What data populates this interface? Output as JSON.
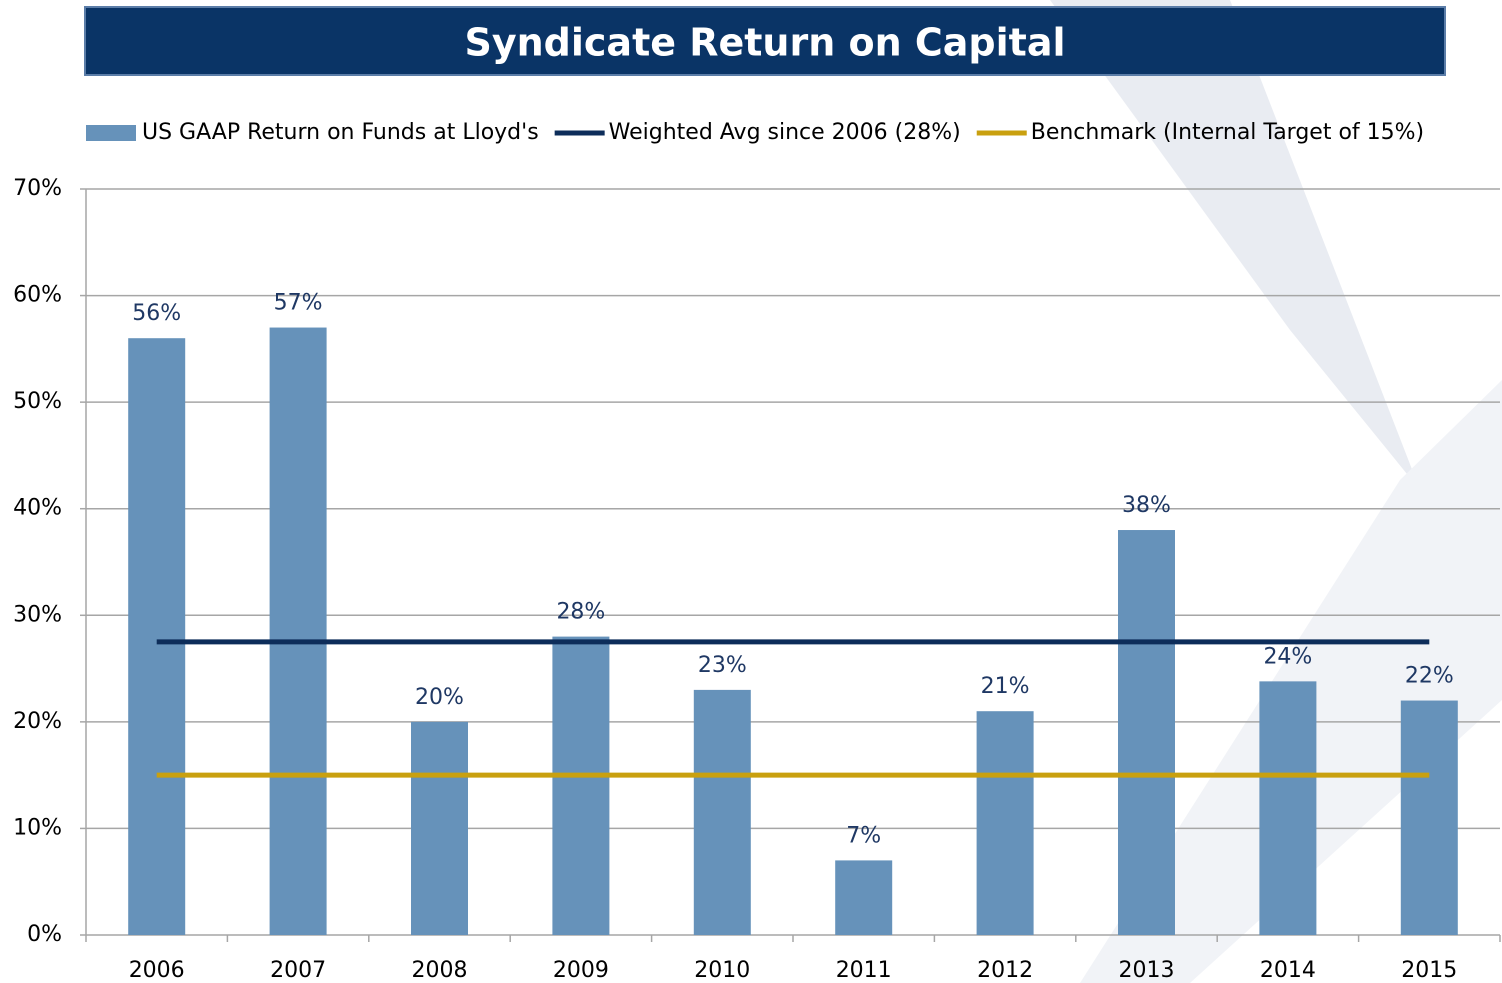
{
  "chart_data": {
    "type": "bar",
    "title": "Syndicate Return on Capital",
    "categories": [
      "2006",
      "2007",
      "2008",
      "2009",
      "2010",
      "2011",
      "2012",
      "2013",
      "2014",
      "2015"
    ],
    "series": [
      {
        "name": "US GAAP Return on Funds at Lloyd's",
        "type": "bar",
        "color": "#6692ba",
        "values": [
          56,
          57,
          20,
          28,
          23,
          7,
          21,
          38,
          23.8,
          22
        ],
        "value_labels": [
          "56%",
          "57%",
          "20%",
          "28%",
          "23%",
          "7%",
          "21%",
          "38%",
          "24%",
          "22%"
        ]
      },
      {
        "name": "Weighted Avg since 2006 (28%)",
        "type": "line",
        "color": "#0d2d5a",
        "values": [
          27.5,
          27.5,
          27.5,
          27.5,
          27.5,
          27.5,
          27.5,
          27.5,
          27.5,
          27.5
        ]
      },
      {
        "name": "Benchmark (Internal Target of 15%)",
        "type": "line",
        "color": "#c9a00f",
        "values": [
          15,
          15,
          15,
          15,
          15,
          15,
          15,
          15,
          15,
          15
        ]
      }
    ],
    "ylim": [
      0,
      70
    ],
    "yticks": [
      {
        "value": 0,
        "label": "0%"
      },
      {
        "value": 10,
        "label": "10%"
      },
      {
        "value": 20,
        "label": "20%"
      },
      {
        "value": 30,
        "label": "30%"
      },
      {
        "value": 40,
        "label": "40%"
      },
      {
        "value": 50,
        "label": "50%"
      },
      {
        "value": 60,
        "label": "60%"
      },
      {
        "value": 70,
        "label": "70%"
      }
    ],
    "grid": true,
    "legend": "top"
  }
}
